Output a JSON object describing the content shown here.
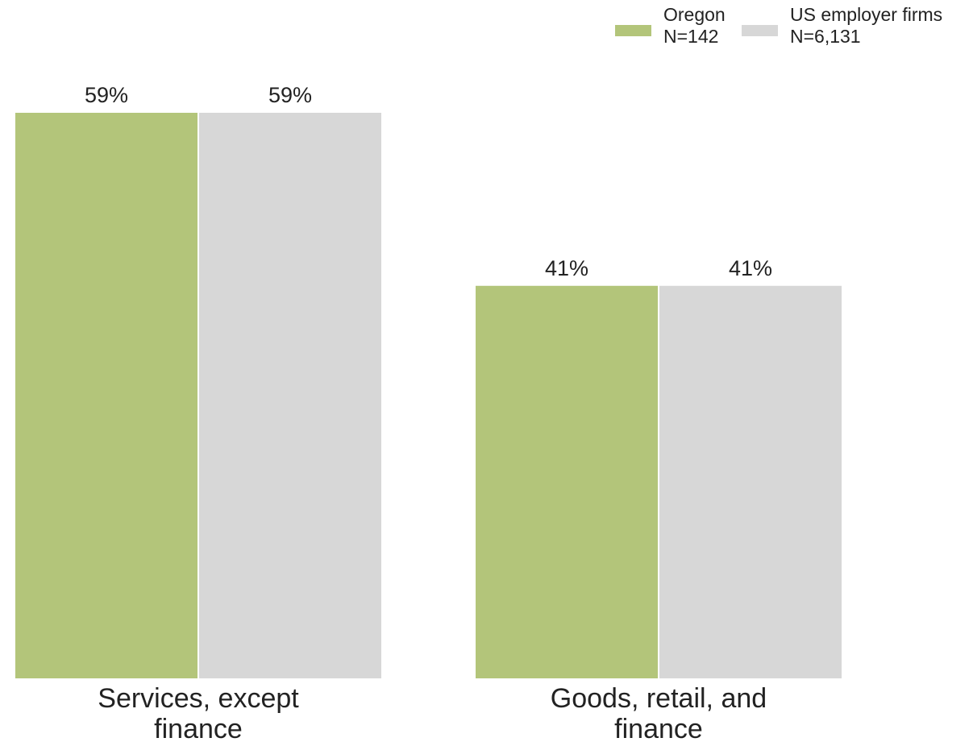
{
  "chart_data": {
    "type": "bar",
    "title": "",
    "xlabel": "",
    "ylabel": "",
    "ylim": [
      0,
      59
    ],
    "grid": false,
    "legend_position": "top-right",
    "categories": [
      [
        "Services, except",
        "finance"
      ],
      [
        "Goods, retail, and",
        "finance"
      ]
    ],
    "series": [
      {
        "name": [
          "Oregon",
          "N=142"
        ],
        "color": "#b3c57a",
        "values": [
          59,
          41
        ],
        "labels": [
          "59%",
          "41%"
        ]
      },
      {
        "name": [
          "US employer firms",
          "N=6,131"
        ],
        "color": "#d7d7d7",
        "values": [
          59,
          41
        ],
        "labels": [
          "59%",
          "41%"
        ]
      }
    ]
  }
}
